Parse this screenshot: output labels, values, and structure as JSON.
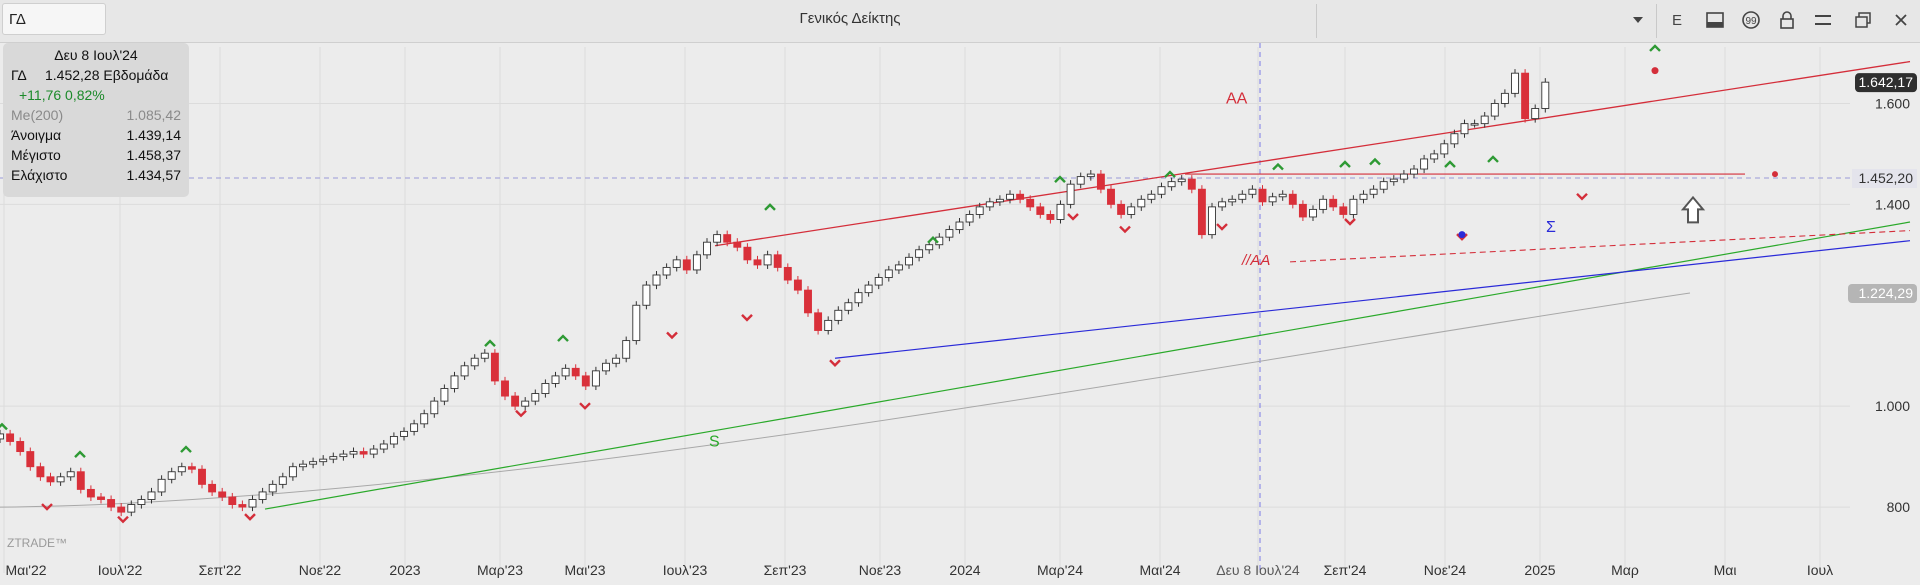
{
  "toolbar": {
    "symbol_value": "ΓΔ",
    "title": "Γενικός Δείκτης",
    "e_label": "E",
    "icons": [
      "chevron-down-icon",
      "layout-icon",
      "comment-icon",
      "lock-icon",
      "menu-icon",
      "restore-window-icon",
      "close-icon"
    ]
  },
  "info": {
    "date": "Δευ 8 Ιουλ'24",
    "symbol": "ΓΔ",
    "value_period": "1.452,28 Εβδομάδα",
    "change": "+11,76 0,82%",
    "ma_label": "Me(200)",
    "ma_value": "1.085,42",
    "open_label": "Άνοιγμα",
    "open_value": "1.439,14",
    "high_label": "Μέγιστο",
    "high_value": "1.458,37",
    "low_label": "Ελάχιστο",
    "low_value": "1.434,57"
  },
  "chart_data": {
    "type": "candlestick",
    "timeframe": "weekly",
    "x_ticks": [
      "Μαι'22",
      "Ιουλ'22",
      "Σεπ'22",
      "Νοε'22",
      "2023",
      "Μαρ'23",
      "Μαι'23",
      "Ιουλ'23",
      "Σεπ'23",
      "Νοε'23",
      "2024",
      "Μαρ'24",
      "Μαι'24",
      "Δευ 8 Ιουλ'24",
      "Σεπ'24",
      "Νοε'24",
      "2025",
      "Μαρ",
      "Μαι",
      "Ιουλ"
    ],
    "y_ticks": [
      {
        "value": 800,
        "label": "800"
      },
      {
        "value": 1000,
        "label": "1.000"
      },
      {
        "value": 1400,
        "label": "1.400"
      },
      {
        "value": 1600,
        "label": "1.600"
      }
    ],
    "y_badges": [
      {
        "value": 1642.17,
        "label": "1.642,17",
        "style": "last-price"
      },
      {
        "value": 1452.2,
        "label": "1.452,20",
        "style": "crosshair"
      },
      {
        "value": 1224.29,
        "label": "1.224,29",
        "style": "ma"
      }
    ],
    "series_close": [
      945,
      930,
      910,
      880,
      860,
      850,
      860,
      870,
      835,
      820,
      815,
      800,
      790,
      805,
      815,
      830,
      855,
      870,
      880,
      875,
      845,
      830,
      820,
      805,
      800,
      815,
      830,
      845,
      860,
      880,
      885,
      890,
      895,
      900,
      905,
      910,
      905,
      915,
      925,
      940,
      950,
      965,
      985,
      1010,
      1035,
      1060,
      1080,
      1095,
      1105,
      1050,
      1020,
      1000,
      1010,
      1025,
      1045,
      1060,
      1075,
      1060,
      1040,
      1070,
      1085,
      1095,
      1130,
      1200,
      1240,
      1260,
      1275,
      1290,
      1270,
      1300,
      1325,
      1340,
      1325,
      1315,
      1290,
      1280,
      1300,
      1275,
      1250,
      1230,
      1185,
      1150,
      1170,
      1190,
      1205,
      1225,
      1240,
      1255,
      1270,
      1280,
      1295,
      1310,
      1320,
      1335,
      1350,
      1365,
      1380,
      1395,
      1405,
      1410,
      1420,
      1410,
      1395,
      1380,
      1370,
      1400,
      1440,
      1455,
      1460,
      1430,
      1400,
      1380,
      1395,
      1410,
      1420,
      1435,
      1445,
      1450,
      1430,
      1340,
      1395,
      1405,
      1410,
      1420,
      1430,
      1405,
      1415,
      1420,
      1400,
      1375,
      1390,
      1410,
      1395,
      1380,
      1410,
      1420,
      1430,
      1445,
      1450,
      1460,
      1470,
      1490,
      1500,
      1520,
      1540,
      1560,
      1560,
      1575,
      1600,
      1620,
      1660,
      1570,
      1590,
      1642.17
    ],
    "moving_average_200": {
      "label": "Me(200)",
      "start": 800,
      "end": 1224.29
    },
    "trendlines": [
      {
        "name": "AA",
        "color": "#d42e3a"
      },
      {
        "name": "//AA",
        "color": "#d42e3a"
      },
      {
        "name": "S",
        "color": "#2aa92a"
      },
      {
        "name": "Σ",
        "color": "#2a2ad8"
      }
    ],
    "ylim": [
      705,
      1700
    ],
    "crosshair": {
      "date": "Δευ 8 Ιουλ'24",
      "value": 1452.2
    },
    "watermark": "ZTRADE™",
    "colors": {
      "up": "#ffffff",
      "down": "#d9303a",
      "ma": "#a8a8a8",
      "resistance": "#d42e3a",
      "support": "#2aa92a",
      "channel": "#2a2ad8",
      "marker_up": "#2e9a34",
      "marker_down": "#d42e3a"
    }
  }
}
